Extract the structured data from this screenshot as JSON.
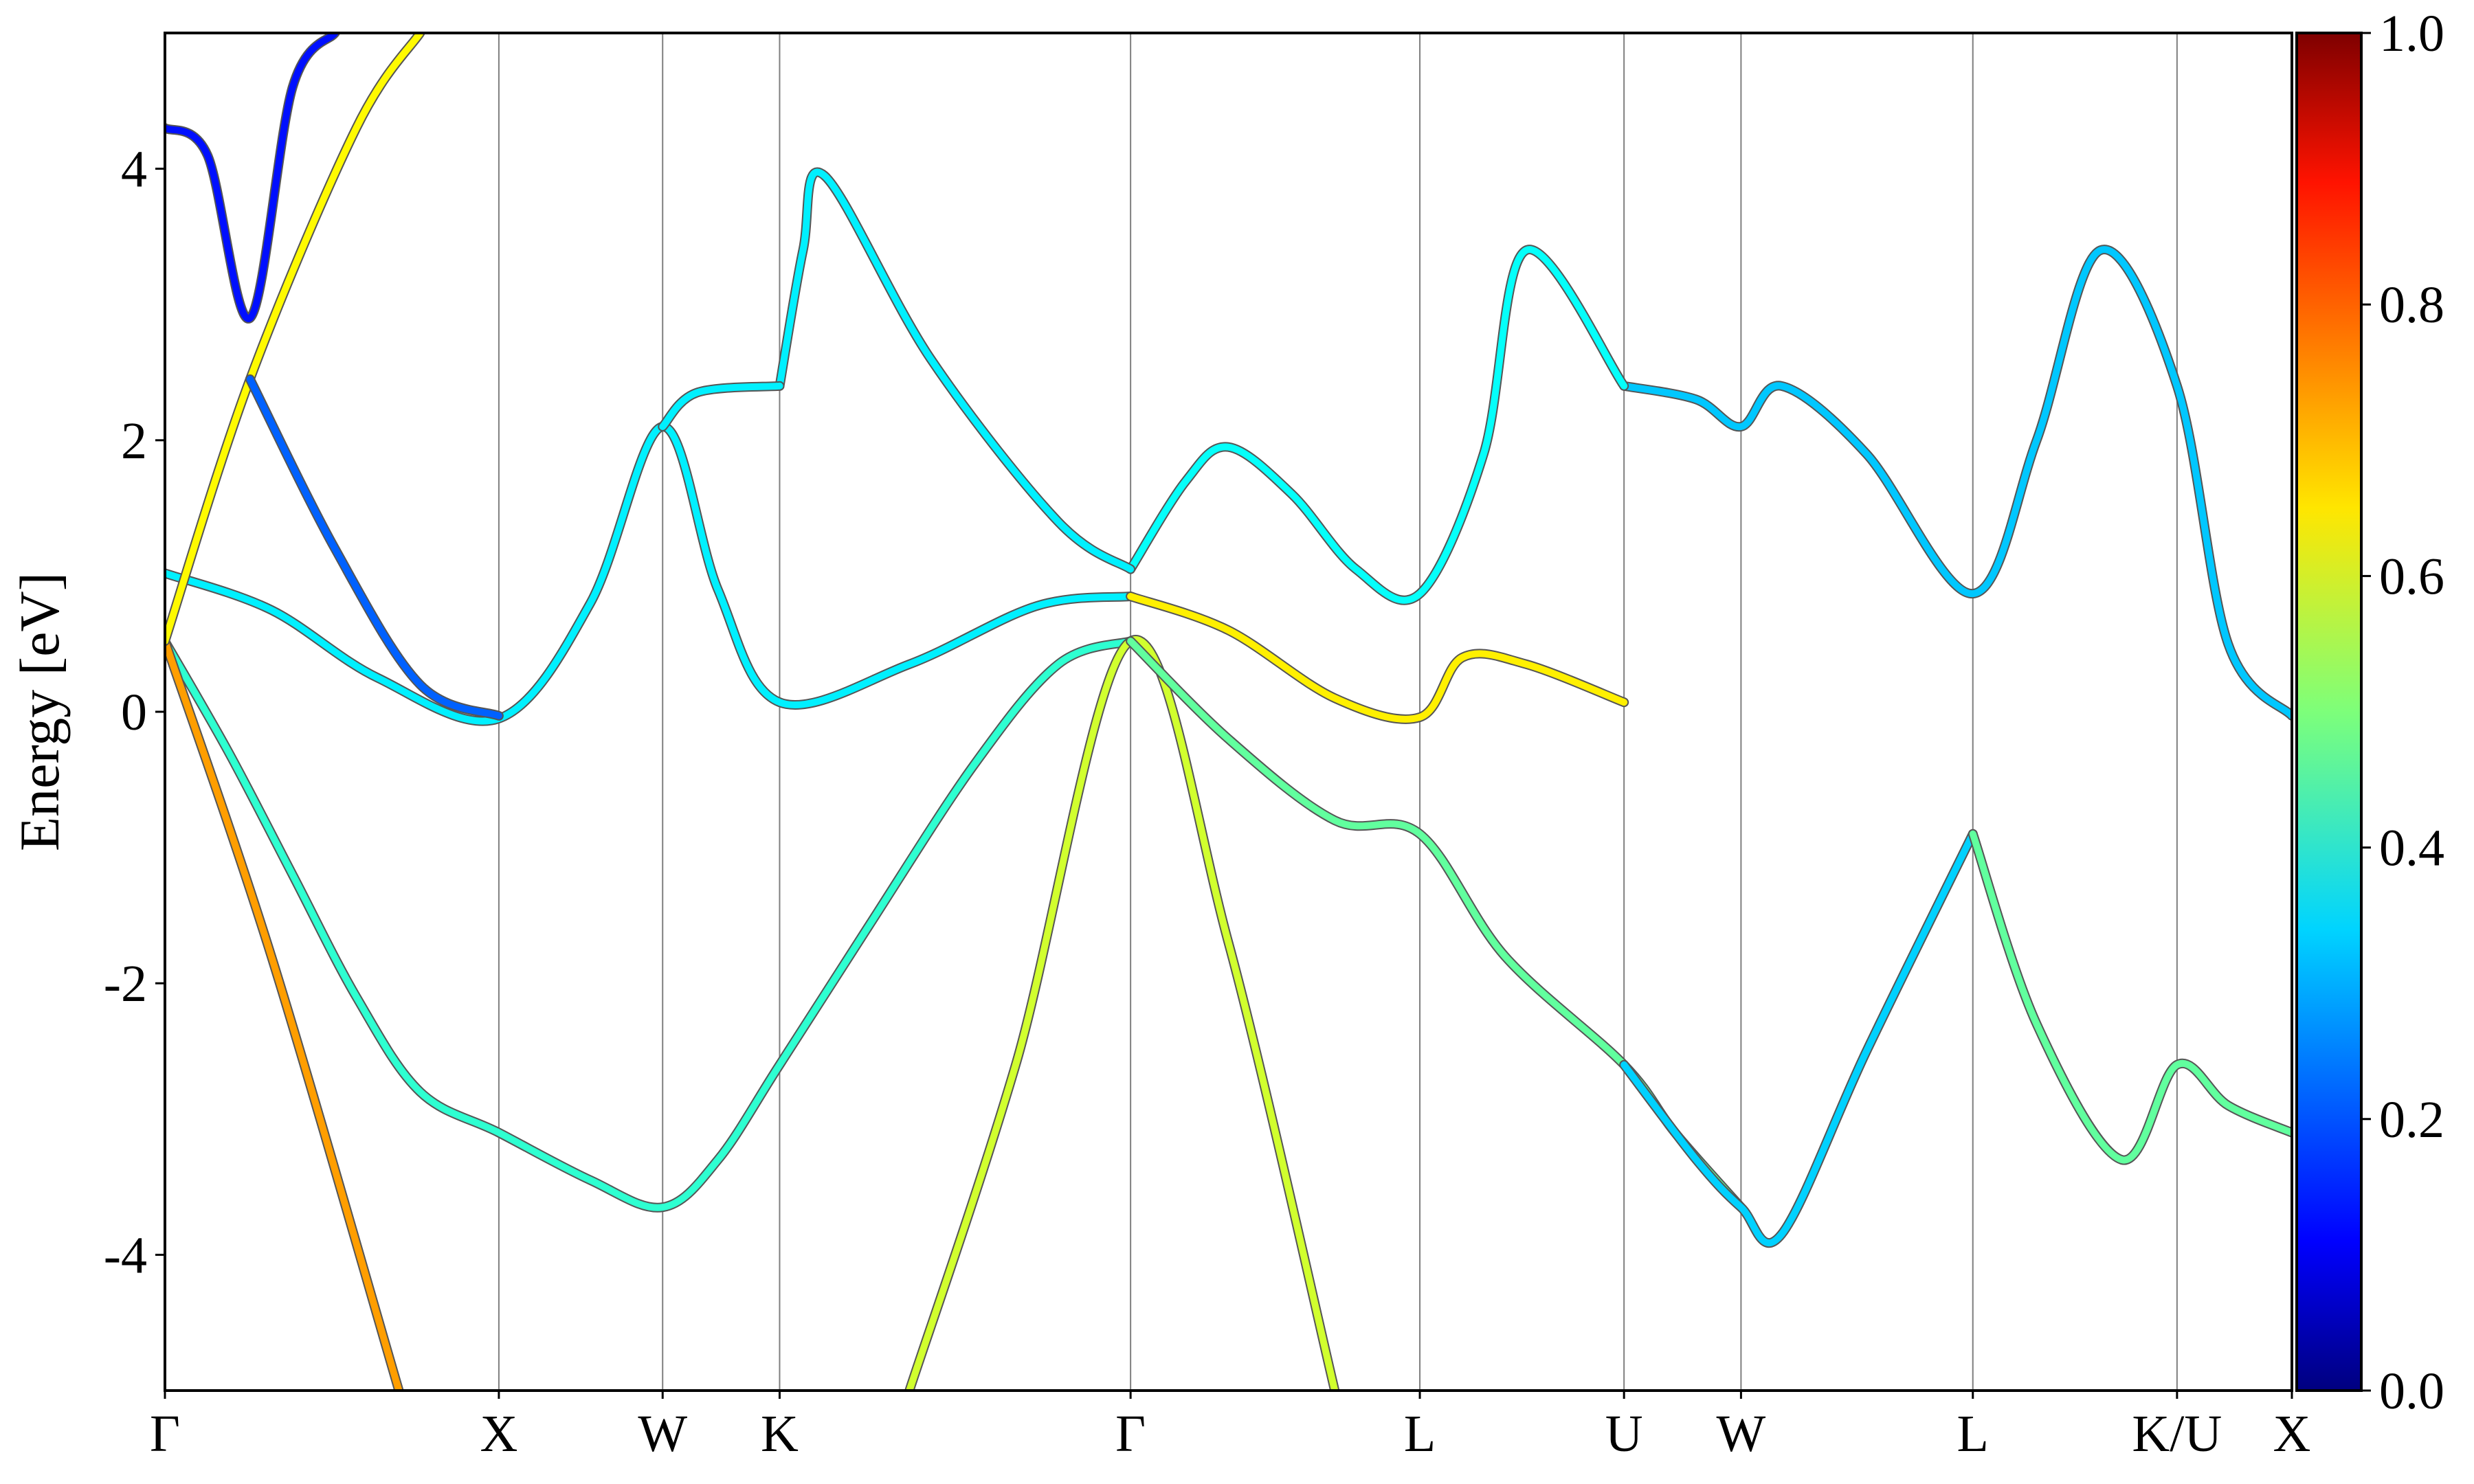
{
  "chart_data": {
    "type": "line",
    "title": "",
    "xlabel": "",
    "ylabel": "Energy [eV]",
    "ylim": [
      -5,
      5
    ],
    "yticks": [
      {
        "value": -4,
        "label": "-4"
      },
      {
        "value": -2,
        "label": "-2"
      },
      {
        "value": 0,
        "label": "0"
      },
      {
        "value": 2,
        "label": "2"
      },
      {
        "value": 4,
        "label": "4"
      }
    ],
    "kpath": [
      {
        "label": "Γ",
        "k": 0.0
      },
      {
        "label": "X",
        "k": 0.157
      },
      {
        "label": "W",
        "k": 0.234
      },
      {
        "label": "K",
        "k": 0.289
      },
      {
        "label": "Γ",
        "k": 0.454
      },
      {
        "label": "L",
        "k": 0.59
      },
      {
        "label": "U",
        "k": 0.686
      },
      {
        "label": "W",
        "k": 0.741
      },
      {
        "label": "L",
        "k": 0.85
      },
      {
        "label": "K/U",
        "k": 0.946
      },
      {
        "label": "X",
        "k": 1.0
      }
    ],
    "colorbar": {
      "colormap": "jet",
      "range": [
        0.0,
        1.0
      ],
      "ticks": [
        {
          "value": 0.0,
          "label": "0.0"
        },
        {
          "value": 0.2,
          "label": "0.2"
        },
        {
          "value": 0.4,
          "label": "0.4"
        },
        {
          "value": 0.6,
          "label": "0.6"
        },
        {
          "value": 0.8,
          "label": "0.8"
        },
        {
          "value": 1.0,
          "label": "1.0"
        }
      ]
    },
    "series": [
      {
        "weight": 0.42,
        "points": [
          [
            0,
            0.52
          ],
          [
            0.03,
            -0.3
          ],
          [
            0.06,
            -1.2
          ],
          [
            0.09,
            -2.1
          ],
          [
            0.12,
            -2.8
          ],
          [
            0.157,
            -3.1
          ],
          [
            0.2,
            -3.45
          ],
          [
            0.234,
            -3.65
          ],
          [
            0.26,
            -3.3
          ],
          [
            0.289,
            -2.6
          ],
          [
            0.33,
            -1.6
          ],
          [
            0.38,
            -0.4
          ],
          [
            0.42,
            0.35
          ],
          [
            0.454,
            0.52
          ]
        ]
      },
      {
        "weight": 0.72,
        "points": [
          [
            0,
            0.52
          ],
          [
            0.05,
            -1.8
          ],
          [
            0.11,
            -5.0
          ]
        ]
      },
      {
        "weight": 0.58,
        "points": [
          [
            0.35,
            -5.0
          ],
          [
            0.4,
            -2.6
          ],
          [
            0.454,
            0.52
          ],
          [
            0.5,
            -1.7
          ],
          [
            0.55,
            -5.0
          ]
        ]
      },
      {
        "weight": 0.36,
        "points": [
          [
            0,
            1.02
          ],
          [
            0.05,
            0.75
          ],
          [
            0.1,
            0.25
          ],
          [
            0.157,
            -0.05
          ],
          [
            0.2,
            0.8
          ],
          [
            0.234,
            2.1
          ],
          [
            0.26,
            0.9
          ],
          [
            0.289,
            0.07
          ],
          [
            0.35,
            0.35
          ],
          [
            0.41,
            0.78
          ],
          [
            0.454,
            0.85
          ]
        ]
      },
      {
        "weight": 0.64,
        "points": [
          [
            0.454,
            0.85
          ],
          [
            0.5,
            0.6
          ],
          [
            0.55,
            0.1
          ],
          [
            0.59,
            -0.04
          ],
          [
            0.61,
            0.4
          ],
          [
            0.64,
            0.35
          ],
          [
            0.686,
            0.07
          ]
        ]
      },
      {
        "weight": 0.47,
        "points": [
          [
            0.454,
            0.52
          ],
          [
            0.5,
            -0.2
          ],
          [
            0.55,
            -0.8
          ],
          [
            0.59,
            -0.9
          ],
          [
            0.63,
            -1.8
          ],
          [
            0.686,
            -2.6
          ],
          [
            0.71,
            -3.1
          ],
          [
            0.741,
            -3.65
          ]
        ]
      },
      {
        "weight": 0.33,
        "points": [
          [
            0.686,
            -2.6
          ],
          [
            0.72,
            -3.3
          ],
          [
            0.741,
            -3.65
          ],
          [
            0.76,
            -3.85
          ],
          [
            0.8,
            -2.5
          ],
          [
            0.85,
            -0.9
          ]
        ]
      },
      {
        "weight": 0.47,
        "points": [
          [
            0.85,
            -0.9
          ],
          [
            0.88,
            -2.3
          ],
          [
            0.92,
            -3.3
          ],
          [
            0.946,
            -2.6
          ],
          [
            0.97,
            -2.9
          ],
          [
            1.0,
            -3.1
          ]
        ]
      },
      {
        "weight": 0.32,
        "points": [
          [
            0.686,
            2.4
          ],
          [
            0.72,
            2.3
          ],
          [
            0.741,
            2.1
          ],
          [
            0.76,
            2.4
          ],
          [
            0.8,
            1.9
          ],
          [
            0.85,
            0.87
          ],
          [
            0.88,
            2.0
          ],
          [
            0.91,
            3.4
          ],
          [
            0.946,
            2.4
          ],
          [
            0.97,
            0.5
          ],
          [
            1.0,
            -0.03
          ]
        ]
      },
      {
        "weight": 0.38,
        "points": [
          [
            0.454,
            1.05
          ],
          [
            0.48,
            1.7
          ],
          [
            0.5,
            1.95
          ],
          [
            0.53,
            1.6
          ],
          [
            0.56,
            1.05
          ],
          [
            0.59,
            0.87
          ],
          [
            0.62,
            1.9
          ],
          [
            0.64,
            3.4
          ],
          [
            0.686,
            2.4
          ]
        ]
      },
      {
        "weight": 0.36,
        "points": [
          [
            0.289,
            2.4
          ],
          [
            0.3,
            3.4
          ],
          [
            0.31,
            3.95
          ],
          [
            0.36,
            2.6
          ],
          [
            0.42,
            1.4
          ],
          [
            0.454,
            1.05
          ]
        ]
      },
      {
        "weight": 0.36,
        "points": [
          [
            0.234,
            2.1
          ],
          [
            0.25,
            2.35
          ],
          [
            0.289,
            2.4
          ]
        ]
      },
      {
        "weight": 0.14,
        "points": [
          [
            0,
            4.3
          ],
          [
            0.02,
            4.1
          ],
          [
            0.04,
            2.9
          ],
          [
            0.06,
            4.6
          ],
          [
            0.08,
            5.0
          ]
        ]
      },
      {
        "weight": 0.63,
        "points": [
          [
            0,
            0.52
          ],
          [
            0.04,
            2.45
          ],
          [
            0.09,
            4.3
          ],
          [
            0.12,
            5.0
          ]
        ]
      },
      {
        "weight": 0.22,
        "points": [
          [
            0.04,
            2.45
          ],
          [
            0.08,
            1.2
          ],
          [
            0.12,
            0.2
          ],
          [
            0.157,
            -0.03
          ]
        ]
      }
    ]
  }
}
